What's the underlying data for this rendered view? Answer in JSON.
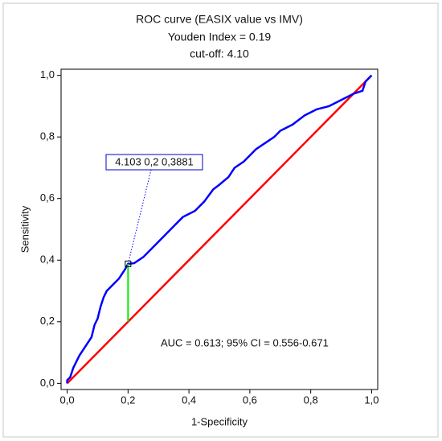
{
  "chart_data": {
    "type": "line",
    "title": "ROC curve (EASIX value vs IMV)",
    "subtitle": [
      "Youden Index  = 0.19",
      "cut-off: 4.10"
    ],
    "xlabel": "1-Specificity",
    "ylabel": "Sensitivity",
    "xlim": [
      -0.02,
      1.02
    ],
    "ylim": [
      -0.02,
      1.02
    ],
    "xticks": [
      {
        "value": 0,
        "label": "0,0"
      },
      {
        "value": 0.2,
        "label": "0,2"
      },
      {
        "value": 0.4,
        "label": "0,4"
      },
      {
        "value": 0.6,
        "label": "0,6"
      },
      {
        "value": 0.8,
        "label": "0,8"
      },
      {
        "value": 1,
        "label": "1,0"
      }
    ],
    "yticks": [
      {
        "value": 0,
        "label": "0,0"
      },
      {
        "value": 0.2,
        "label": "0,2"
      },
      {
        "value": 0.4,
        "label": "0,4"
      },
      {
        "value": 0.6,
        "label": "0,6"
      },
      {
        "value": 0.8,
        "label": "0,8"
      },
      {
        "value": 1,
        "label": "1,0"
      }
    ],
    "grid": false,
    "series": [
      {
        "color": "#0000ff",
        "x": [
          0,
          0,
          0.01,
          0.02,
          0.03,
          0.04,
          0.06,
          0.08,
          0.09,
          0.1,
          0.11,
          0.12,
          0.13,
          0.15,
          0.17,
          0.19,
          0.2,
          0.22,
          0.25,
          0.28,
          0.31,
          0.35,
          0.38,
          0.42,
          0.45,
          0.48,
          0.5,
          0.53,
          0.55,
          0.58,
          0.62,
          0.65,
          0.68,
          0.7,
          0.74,
          0.78,
          0.82,
          0.86,
          0.9,
          0.94,
          0.97,
          0.98,
          1
        ],
        "values": [
          0,
          0.01,
          0.02,
          0.05,
          0.07,
          0.09,
          0.12,
          0.15,
          0.19,
          0.21,
          0.25,
          0.28,
          0.3,
          0.32,
          0.34,
          0.37,
          0.3881,
          0.39,
          0.41,
          0.44,
          0.47,
          0.51,
          0.54,
          0.56,
          0.59,
          0.63,
          0.645,
          0.67,
          0.7,
          0.72,
          0.76,
          0.78,
          0.8,
          0.82,
          0.84,
          0.87,
          0.89,
          0.9,
          0.92,
          0.94,
          0.95,
          0.98,
          1
        ]
      },
      {
        "color": "#ff0000",
        "x": [
          0,
          1
        ],
        "values": [
          0,
          1
        ]
      }
    ],
    "cutoff": {
      "x": 0.2,
      "y": 0.3881,
      "y0": 0.2,
      "color": "#00ee00",
      "label": "4.103 0,2 0,3881"
    },
    "annotation": "AUC = 0.613; 95% CI = 0.556-0.671"
  }
}
